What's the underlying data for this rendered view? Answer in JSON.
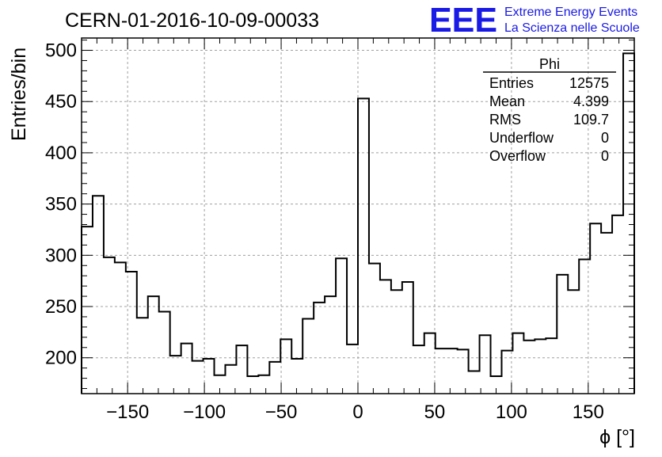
{
  "header": {
    "run_title": "CERN-01-2016-10-09-00033",
    "logo_text": "EEE",
    "brand_line1": "Extreme Energy Events",
    "brand_line2": "La Scienza nelle Scuole",
    "brand_color": "#1a1ae6"
  },
  "stats_box": {
    "title": "Phi",
    "rows": [
      {
        "label": "Entries",
        "value": "12575"
      },
      {
        "label": "Mean",
        "value": "4.399"
      },
      {
        "label": "RMS",
        "value": "109.7"
      },
      {
        "label": "Underflow",
        "value": "0"
      },
      {
        "label": "Overflow",
        "value": "0"
      }
    ]
  },
  "chart_data": {
    "type": "histogram",
    "title": "CERN-01-2016-10-09-00033",
    "xlabel": "ϕ [°]",
    "ylabel": "Entries/bin",
    "xlim": [
      -180,
      180
    ],
    "ylim": [
      165,
      512
    ],
    "x_ticks": [
      -150,
      -100,
      -50,
      0,
      50,
      100,
      150
    ],
    "x_tick_labels": [
      "−150",
      "−100",
      "−50",
      "0",
      "50",
      "100",
      "150"
    ],
    "y_ticks": [
      200,
      250,
      300,
      350,
      400,
      450,
      500
    ],
    "y_tick_labels": [
      "200",
      "250",
      "300",
      "350",
      "400",
      "450",
      "500"
    ],
    "grid": true,
    "bin_width": 7.2,
    "bin_start": -180,
    "values": [
      328,
      358,
      298,
      293,
      284,
      239,
      260,
      245,
      202,
      214,
      197,
      199,
      183,
      193,
      212,
      182,
      183,
      196,
      218,
      199,
      238,
      254,
      260,
      297,
      213,
      453,
      292,
      276,
      266,
      274,
      212,
      224,
      209,
      209,
      208,
      187,
      222,
      182,
      207,
      224,
      217,
      218,
      219,
      281,
      266,
      296,
      331,
      322,
      339,
      497
    ],
    "line_color": "#000000"
  }
}
